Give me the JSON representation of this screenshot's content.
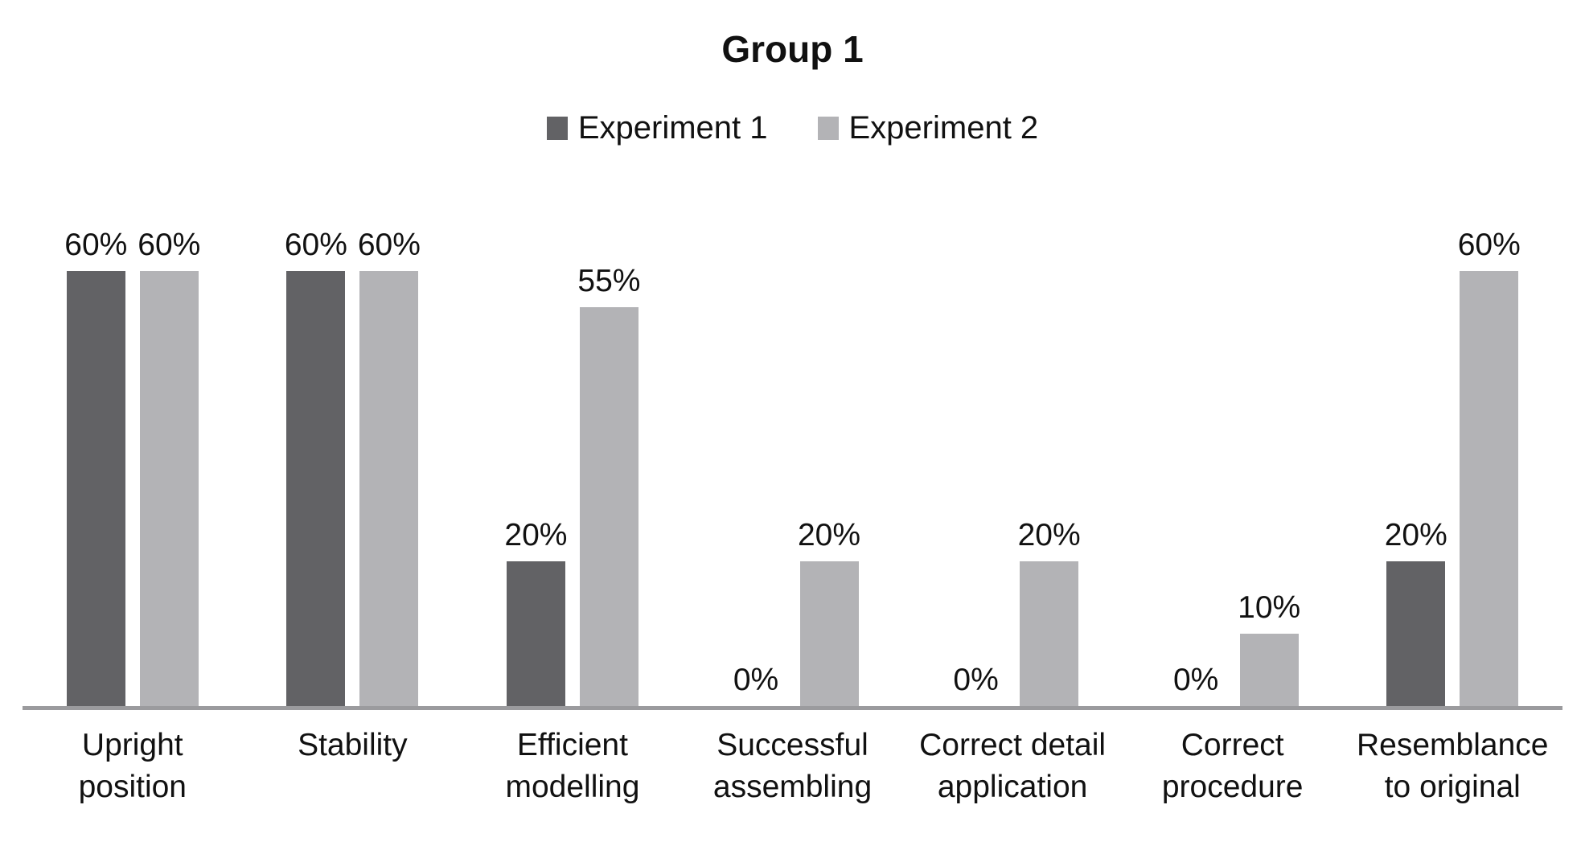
{
  "chart_data": {
    "type": "bar",
    "title": "Group 1",
    "categories": [
      "Upright\nposition",
      "Stability",
      "Efficient\nmodelling",
      "Successful\nassembling",
      "Correct detail\napplication",
      "Correct\nprocedure",
      "Resemblance\nto original"
    ],
    "series": [
      {
        "name": "Experiment 1",
        "color": "#626265",
        "values": [
          60,
          60,
          20,
          0,
          0,
          0,
          20
        ]
      },
      {
        "name": "Experiment 2",
        "color": "#b3b3b6",
        "values": [
          60,
          60,
          55,
          20,
          20,
          10,
          60
        ]
      }
    ],
    "value_suffix": "%",
    "ylim": [
      0,
      62
    ],
    "grid": false,
    "legend_position": "top",
    "axis_line_color": "#9b9b9e"
  }
}
